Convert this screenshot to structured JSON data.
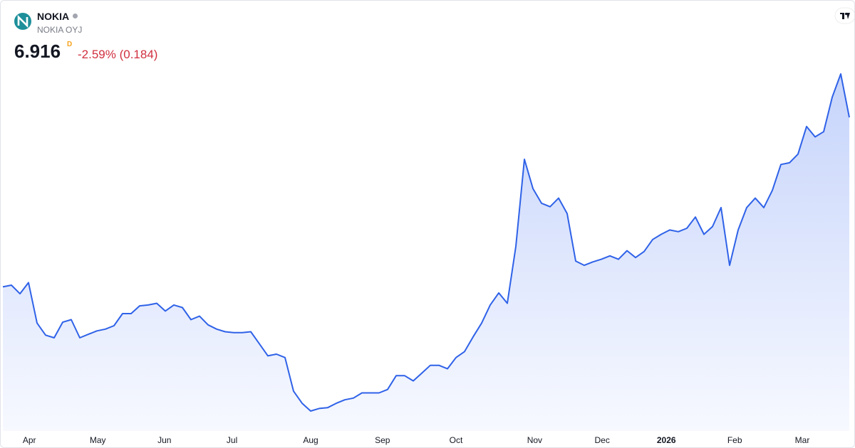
{
  "chart_data": {
    "type": "area",
    "title": "NOKIA",
    "subtitle": "NOKIA OYJ",
    "price": 6.916,
    "interval": "D",
    "change": "-2.59% (0.184)",
    "color": "#2f62e8",
    "values": [
      4.95,
      4.97,
      4.87,
      5.0,
      4.53,
      4.39,
      4.36,
      4.54,
      4.57,
      4.36,
      4.4,
      4.44,
      4.46,
      4.5,
      4.64,
      4.64,
      4.73,
      4.74,
      4.76,
      4.67,
      4.74,
      4.71,
      4.57,
      4.61,
      4.51,
      4.46,
      4.43,
      4.42,
      4.42,
      4.43,
      4.29,
      4.15,
      4.17,
      4.13,
      3.74,
      3.6,
      3.51,
      3.54,
      3.55,
      3.6,
      3.64,
      3.66,
      3.72,
      3.72,
      3.72,
      3.76,
      3.92,
      3.92,
      3.86,
      3.95,
      4.04,
      4.04,
      4.0,
      4.13,
      4.2,
      4.37,
      4.53,
      4.74,
      4.88,
      4.76,
      5.42,
      6.43,
      6.09,
      5.92,
      5.88,
      5.98,
      5.8,
      5.25,
      5.2,
      5.24,
      5.27,
      5.31,
      5.27,
      5.37,
      5.29,
      5.36,
      5.5,
      5.56,
      5.61,
      5.59,
      5.63,
      5.76,
      5.56,
      5.65,
      5.87,
      5.2,
      5.61,
      5.87,
      5.98,
      5.87,
      6.07,
      6.37,
      6.39,
      6.49,
      6.81,
      6.69,
      6.75,
      7.15,
      7.42,
      6.916
    ],
    "xticks": [
      {
        "value": 3.1,
        "label": "Apr"
      },
      {
        "value": 11.1,
        "label": "May"
      },
      {
        "value": 18.9,
        "label": "Jun"
      },
      {
        "value": 26.8,
        "label": "Jul"
      },
      {
        "value": 36,
        "label": "Aug"
      },
      {
        "value": 44.4,
        "label": "Sep"
      },
      {
        "value": 53,
        "label": "Oct"
      },
      {
        "value": 62.2,
        "label": "Nov"
      },
      {
        "value": 70.1,
        "label": "Dec"
      },
      {
        "value": 77.6,
        "label": "2026"
      },
      {
        "value": 85.6,
        "label": "Feb"
      },
      {
        "value": 93.5,
        "label": "Mar"
      }
    ]
  }
}
